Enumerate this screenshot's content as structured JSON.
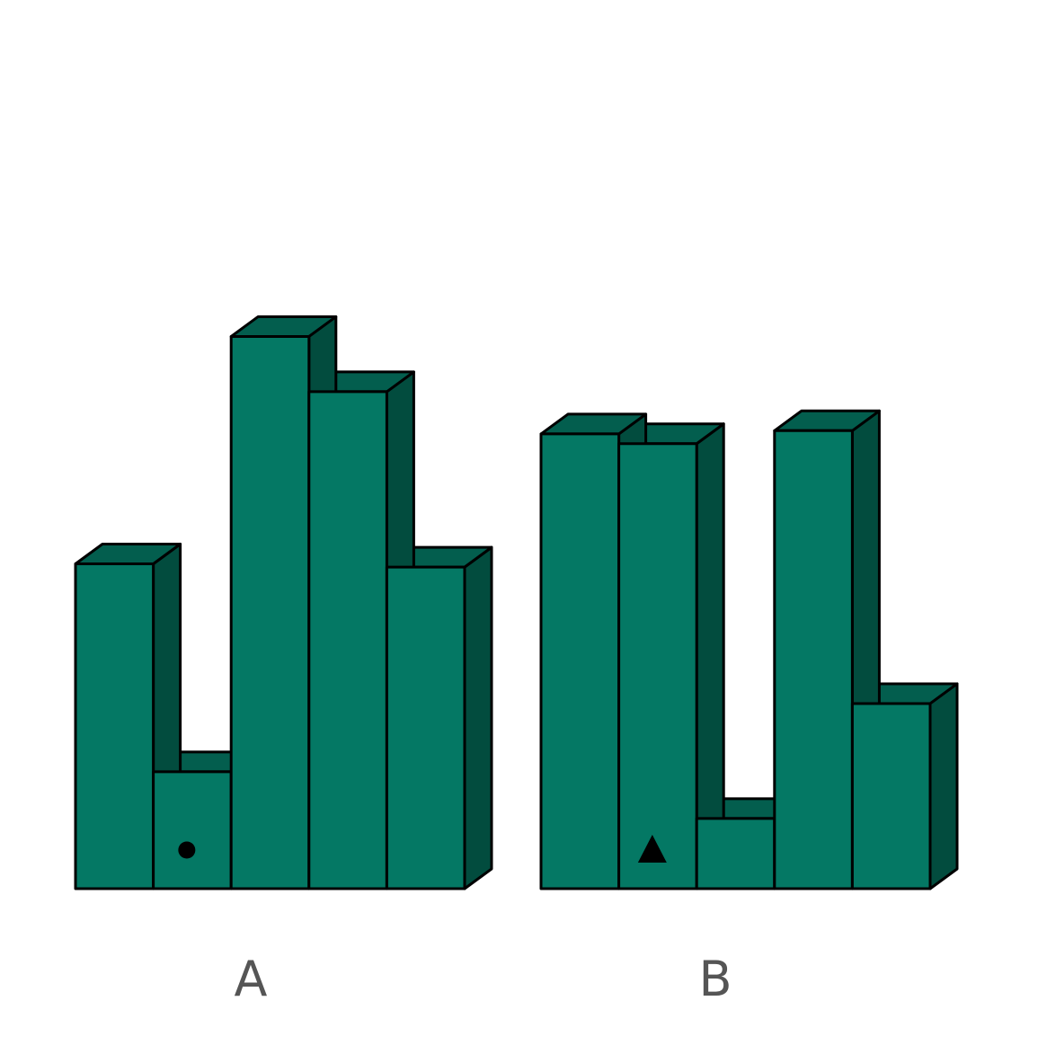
{
  "groups": [
    {
      "label": "A",
      "marker": "circle",
      "marker_column": 2,
      "heights": [
        5,
        1.8,
        8.5,
        7.65,
        4.95
      ]
    },
    {
      "label": "B",
      "marker": "triangle",
      "marker_column": 2,
      "heights": [
        7,
        6.85,
        1.08,
        7.05,
        2.85
      ]
    }
  ],
  "colors": {
    "front": "#047864",
    "top": "#035e4e",
    "side": "#024c3e",
    "edge": "#000000",
    "marker": "#000000",
    "label": "#555555"
  }
}
